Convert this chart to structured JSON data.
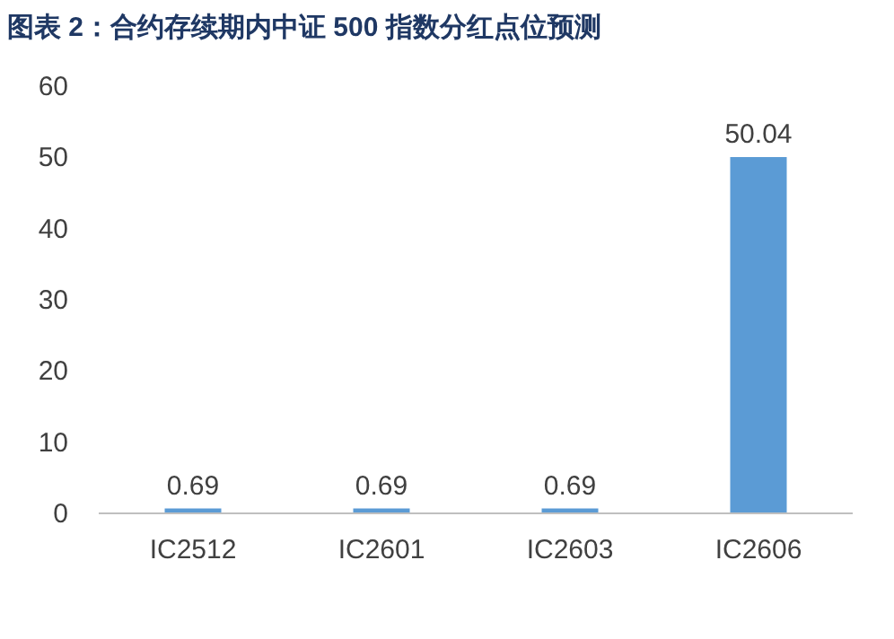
{
  "chart_data": {
    "type": "bar",
    "title": "图表 2：合约存续期内中证 500 指数分红点位预测",
    "categories": [
      "IC2512",
      "IC2601",
      "IC2603",
      "IC2606"
    ],
    "values": [
      0.69,
      0.69,
      0.69,
      50.04
    ],
    "color": "#5b9bd5",
    "ylim": [
      0,
      60
    ],
    "yticks": [
      0,
      10,
      20,
      30,
      40,
      50,
      60
    ],
    "data_labels": true,
    "grid": false
  }
}
